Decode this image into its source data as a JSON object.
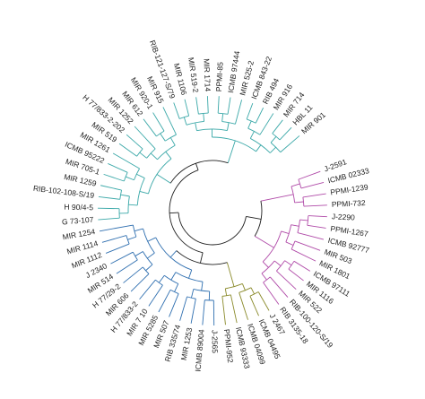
{
  "dendrogram": {
    "colors": {
      "inner": "#1f1f1f",
      "teal": "#3aa8a8",
      "blue": "#2f6fb0",
      "purple": "#b04aa8",
      "olive": "#8a8a2a"
    },
    "leaves": [
      {
        "label": "J-2591",
        "color": "purple"
      },
      {
        "label": "ICMB 02333",
        "color": "purple"
      },
      {
        "label": "PPMI-1239",
        "color": "purple"
      },
      {
        "label": "PPMI-732",
        "color": "purple"
      },
      {
        "label": "J-2290",
        "color": "purple"
      },
      {
        "label": "PPMI-1267",
        "color": "purple"
      },
      {
        "label": "ICMB 92777",
        "color": "purple"
      },
      {
        "label": "MIR 503",
        "color": "purple"
      },
      {
        "label": "MIR 1801",
        "color": "purple"
      },
      {
        "label": "ICMB 97111",
        "color": "purple"
      },
      {
        "label": "MIR 1116",
        "color": "purple"
      },
      {
        "label": "MIR 522",
        "color": "purple"
      },
      {
        "label": "RIB-100-120-S/19",
        "color": "purple"
      },
      {
        "label": "RIB 3135-18",
        "color": "purple"
      },
      {
        "label": "J 2467",
        "color": "olive"
      },
      {
        "label": "ICMB 04495",
        "color": "olive"
      },
      {
        "label": "ICMB 04099",
        "color": "olive"
      },
      {
        "label": "ICMB 93333",
        "color": "olive"
      },
      {
        "label": "PPMI-952",
        "color": "olive"
      },
      {
        "label": "J-2565",
        "color": "blue"
      },
      {
        "label": "ICMB 89004",
        "color": "blue"
      },
      {
        "label": "MIR 1253",
        "color": "blue"
      },
      {
        "label": "RIB 335/74",
        "color": "blue"
      },
      {
        "label": "MIR 507",
        "color": "blue"
      },
      {
        "label": "MIR 5285",
        "color": "blue"
      },
      {
        "label": "MIR 7 10",
        "color": "blue"
      },
      {
        "label": "H 77/833-2",
        "color": "blue"
      },
      {
        "label": "MIR 606",
        "color": "blue"
      },
      {
        "label": "H 77/29-2",
        "color": "blue"
      },
      {
        "label": "MIR 514",
        "color": "blue"
      },
      {
        "label": "J 2340",
        "color": "blue"
      },
      {
        "label": "MIR 1112",
        "color": "blue"
      },
      {
        "label": "MIR 1114",
        "color": "blue"
      },
      {
        "label": "MIR 1254",
        "color": "blue"
      },
      {
        "label": "G 73-107",
        "color": "teal"
      },
      {
        "label": "H 90/4-5",
        "color": "teal"
      },
      {
        "label": "RIB-102-108-S/19",
        "color": "teal"
      },
      {
        "label": "MIR 1259",
        "color": "teal"
      },
      {
        "label": "MIR 705-1",
        "color": "teal"
      },
      {
        "label": "ICMB 95222",
        "color": "teal"
      },
      {
        "label": "MIR 1261",
        "color": "teal"
      },
      {
        "label": "MIR 519",
        "color": "teal"
      },
      {
        "label": "H 77/833-2-202",
        "color": "teal"
      },
      {
        "label": "MIR 1252",
        "color": "teal"
      },
      {
        "label": "MIR 612",
        "color": "teal"
      },
      {
        "label": "MIR 920-1",
        "color": "teal"
      },
      {
        "label": "MIR 915",
        "color": "teal"
      },
      {
        "label": "RIB-121-127-S/79",
        "color": "teal"
      },
      {
        "label": "MIR 1106",
        "color": "teal"
      },
      {
        "label": "MIR 519-2",
        "color": "teal"
      },
      {
        "label": "MIR 1714",
        "color": "teal"
      },
      {
        "label": "PPMI-85",
        "color": "teal"
      },
      {
        "label": "ICMB 97444",
        "color": "teal"
      },
      {
        "label": "MIR 525-2",
        "color": "teal"
      },
      {
        "label": "ICMB 843-22",
        "color": "teal"
      },
      {
        "label": "RIB 494",
        "color": "teal"
      },
      {
        "label": "MIR 916",
        "color": "teal"
      },
      {
        "label": "MIR 714",
        "color": "teal"
      },
      {
        "label": "HBL 11",
        "color": "teal"
      },
      {
        "label": "MIR 901",
        "color": "teal"
      }
    ]
  }
}
